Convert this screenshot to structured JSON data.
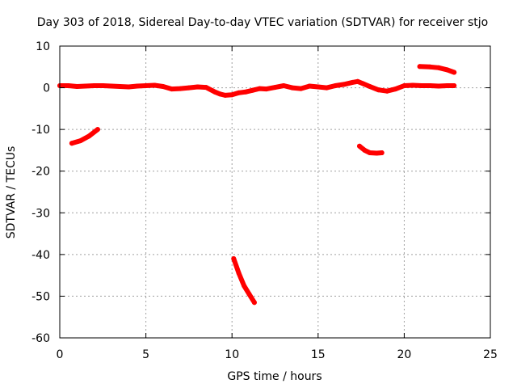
{
  "chart_data": {
    "type": "line",
    "title": "Day 303 of 2018, Sidereal Day-to-day VTEC variation (SDTVAR) for receiver stjo",
    "xlabel": "GPS time / hours",
    "ylabel": "SDTVAR / TECUs",
    "xlim": [
      0,
      25
    ],
    "ylim": [
      -60,
      10
    ],
    "x_ticks": [
      0,
      5,
      10,
      15,
      20,
      25
    ],
    "y_ticks": [
      10,
      0,
      -10,
      -20,
      -30,
      -40,
      -50,
      -60
    ],
    "x_tick_labels": [
      "0",
      "5",
      "10",
      "15",
      "20",
      "25"
    ],
    "y_tick_labels": [
      "10",
      "0",
      "-10",
      "-20",
      "-30",
      "-40",
      "-50",
      "-60"
    ],
    "grid": true,
    "color": "#ff0000",
    "segments": [
      {
        "x": [
          0.0,
          0.5,
          1.0,
          1.5,
          2.0,
          2.5,
          3.0,
          3.5,
          4.0,
          4.5,
          5.0,
          5.5,
          6.0,
          6.5,
          7.0,
          7.5,
          8.0,
          8.5,
          9.0,
          9.3,
          9.6,
          10.0,
          10.4,
          10.8,
          11.2,
          11.6,
          12.0,
          12.5,
          13.0,
          13.5,
          14.0,
          14.5,
          15.0,
          15.5,
          16.0,
          16.5,
          17.0,
          17.3,
          17.6,
          18.0,
          18.5,
          19.0,
          19.5,
          20.0,
          20.5,
          21.0,
          21.5,
          22.0,
          22.5,
          22.9
        ],
        "y": [
          0.5,
          0.5,
          0.3,
          0.4,
          0.5,
          0.5,
          0.4,
          0.3,
          0.2,
          0.4,
          0.5,
          0.6,
          0.3,
          -0.3,
          -0.2,
          0.0,
          0.2,
          0.1,
          -1.0,
          -1.5,
          -1.8,
          -1.7,
          -1.2,
          -1.0,
          -0.6,
          -0.2,
          -0.3,
          0.1,
          0.5,
          0.0,
          -0.2,
          0.4,
          0.2,
          0.0,
          0.5,
          0.8,
          1.3,
          1.5,
          1.0,
          0.3,
          -0.5,
          -0.8,
          -0.3,
          0.5,
          0.6,
          0.5,
          0.5,
          0.4,
          0.5,
          0.5
        ]
      },
      {
        "x": [
          0.7,
          1.2,
          1.7,
          2.2
        ],
        "y": [
          -13.3,
          -12.7,
          -11.6,
          -10.0
        ]
      },
      {
        "x": [
          10.1,
          10.4,
          10.7,
          11.0,
          11.3
        ],
        "y": [
          -41.0,
          -44.5,
          -47.5,
          -49.5,
          -51.5
        ]
      },
      {
        "x": [
          17.4,
          17.7,
          18.0,
          18.4,
          18.7
        ],
        "y": [
          -14.0,
          -15.0,
          -15.6,
          -15.7,
          -15.6
        ]
      },
      {
        "x": [
          20.9,
          21.5,
          22.0,
          22.5,
          22.9
        ],
        "y": [
          5.1,
          5.0,
          4.8,
          4.3,
          3.7
        ]
      }
    ]
  }
}
